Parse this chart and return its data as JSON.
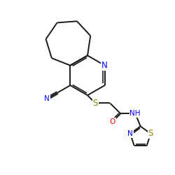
{
  "bg_color": "#ffffff",
  "bond_color": "#1a1a1a",
  "atom_colors": {
    "N": "#0000ff",
    "S": "#888800",
    "O": "#ff0000",
    "C": "#1a1a1a"
  },
  "lw": 1.4,
  "fs": 7.5,
  "figsize": [
    2.5,
    2.5
  ],
  "dpi": 100
}
